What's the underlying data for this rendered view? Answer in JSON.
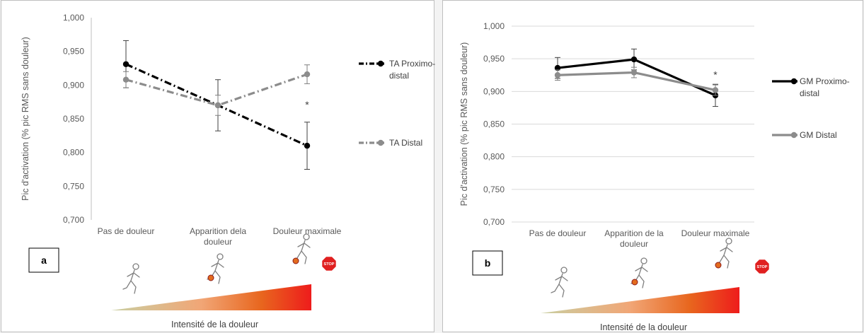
{
  "figures": [
    {
      "panel_label": "a",
      "y_axis_label": "Pic d'activation (% pic RMS sans douleur)",
      "x_axis_title": "Intensité de la douleur",
      "stop_sign_text": "STOP",
      "significance_marker": "*",
      "y_tick_labels": [
        "0,700",
        "0,750",
        "0,800",
        "0,850",
        "0,900",
        "0,950",
        "1,000"
      ],
      "category_labels": [
        [
          "Pas de douleur"
        ],
        [
          "Apparition dela",
          "douleur"
        ],
        [
          "Douleur maximale"
        ]
      ],
      "legend": [
        {
          "lines": [
            "TA Proximo-",
            "distal"
          ]
        },
        {
          "lines": [
            "TA Distal"
          ]
        }
      ]
    },
    {
      "panel_label": "b",
      "y_axis_label": "Pic d'activation (% pic RMS sans douleur)",
      "x_axis_title": "Intensité de la douleur",
      "stop_sign_text": "STOP",
      "significance_marker": "*",
      "y_tick_labels": [
        "0,700",
        "0,750",
        "0,800",
        "0,850",
        "0,900",
        "0,950",
        "1,000"
      ],
      "category_labels": [
        [
          "Pas de douleur"
        ],
        [
          "Apparition de la",
          "douleur"
        ],
        [
          "Douleur maximale"
        ]
      ],
      "legend": [
        {
          "lines": [
            "GM Proximo-",
            "distal"
          ]
        },
        {
          "lines": [
            "GM Distal"
          ]
        }
      ]
    }
  ],
  "chart_data": [
    {
      "type": "line",
      "categories": [
        "Pas de douleur",
        "Apparition dela douleur",
        "Douleur maximale"
      ],
      "ylabel": "Pic d'activation (% pic RMS sans douleur)",
      "xlabel": "Intensité de la douleur",
      "ylim": [
        0.7,
        1.0
      ],
      "grid": false,
      "legend_position": "right",
      "series": [
        {
          "name": "TA Proximo-distal",
          "values": [
            0.931,
            0.87,
            0.81
          ],
          "error": [
            0.035,
            0.038,
            0.035
          ],
          "color": "#000000",
          "dash": "dash-dot"
        },
        {
          "name": "TA Distal",
          "values": [
            0.908,
            0.87,
            0.916
          ],
          "error": [
            0.012,
            0.015,
            0.014
          ],
          "color": "#8c8c8c",
          "dash": "dash-dot"
        }
      ],
      "annotations": [
        {
          "category": "Douleur maximale",
          "value": 0.872,
          "text": "*"
        }
      ]
    },
    {
      "type": "line",
      "categories": [
        "Pas de douleur",
        "Apparition de la douleur",
        "Douleur maximale"
      ],
      "ylabel": "Pic d'activation (% pic RMS sans douleur)",
      "xlabel": "Intensité de la douleur",
      "ylim": [
        0.7,
        1.0
      ],
      "grid": true,
      "legend_position": "right",
      "series": [
        {
          "name": "GM Proximo-distal",
          "values": [
            0.936,
            0.949,
            0.894
          ],
          "error": [
            0.016,
            0.016,
            0.017
          ],
          "color": "#000000",
          "dash": "solid"
        },
        {
          "name": "GM Distal",
          "values": [
            0.925,
            0.929,
            0.902
          ],
          "error": [
            0.008,
            0.008,
            0.008
          ],
          "color": "#8c8c8c",
          "dash": "solid"
        }
      ],
      "annotations": [
        {
          "category": "Douleur maximale",
          "value": 0.927,
          "text": "*"
        }
      ]
    }
  ]
}
